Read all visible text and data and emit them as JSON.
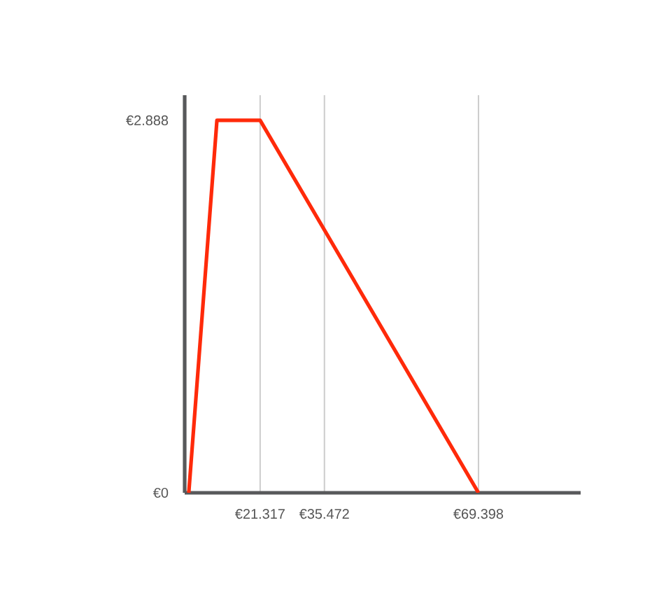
{
  "chart_data": {
    "type": "line",
    "x": [
      5600,
      11800,
      21317,
      69398
    ],
    "values": [
      0,
      2888,
      2888,
      0
    ],
    "color": "#ff2a0a",
    "xlim": [
      4700,
      91900
    ],
    "ylim": [
      0,
      3083
    ],
    "xticks": [
      {
        "value": 21317,
        "label": "€21.317"
      },
      {
        "value": 35472,
        "label": "€35.472"
      },
      {
        "value": 69398,
        "label": "€69.398"
      }
    ],
    "yticks": [
      {
        "value": 0,
        "label": "€0"
      },
      {
        "value": 2888,
        "label": "€2.888"
      }
    ],
    "grid": "x"
  }
}
